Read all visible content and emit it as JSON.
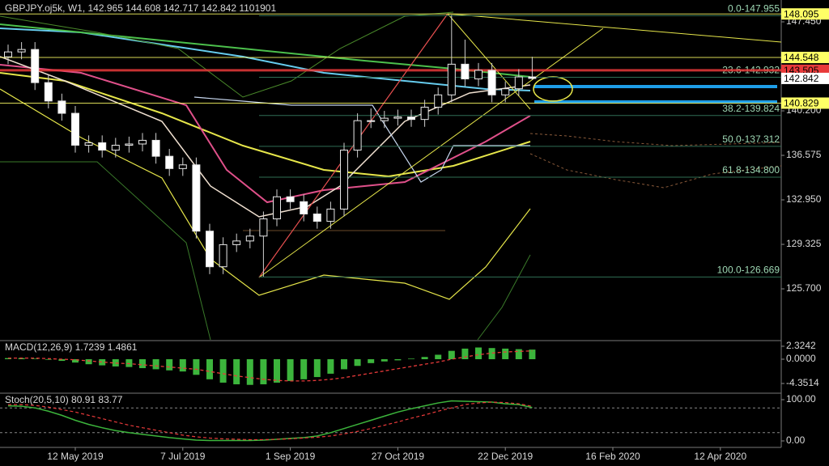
{
  "chart_data": [
    {
      "type": "candlestick",
      "title": "GBPJPY.oj5k, W1, 142.965 144.608 142.717 142.842 1101901",
      "open": [
        144.6,
        145.0,
        145.2,
        142.5,
        141.0,
        140.0,
        137.4,
        137.6,
        137.0,
        137.4,
        137.5,
        137.8,
        136.5,
        135.5,
        135.8,
        130.4,
        127.5,
        129.3,
        129.6,
        130.0,
        131.4,
        133.2,
        132.8,
        131.8,
        131.2,
        132.2,
        137.0,
        139.4,
        139.4,
        139.6,
        139.7,
        139.5,
        140.5,
        141.5,
        144.0,
        142.8,
        143.5,
        141.5,
        142.0,
        142.965
      ],
      "high": [
        145.6,
        145.8,
        145.8,
        143.1,
        141.6,
        140.6,
        138.2,
        138.2,
        138.0,
        138.1,
        138.4,
        138.4,
        137.1,
        136.4,
        136.4,
        131.0,
        129.9,
        130.2,
        130.6,
        132.0,
        133.8,
        133.8,
        133.4,
        132.4,
        132.8,
        137.6,
        140.0,
        140.4,
        140.2,
        140.3,
        140.3,
        141.1,
        142.1,
        148.0,
        146.0,
        144.1,
        144.1,
        142.6,
        143.6,
        144.608
      ],
      "low": [
        144.0,
        144.4,
        141.9,
        140.4,
        139.4,
        136.8,
        136.8,
        136.4,
        136.4,
        136.8,
        136.9,
        135.9,
        134.9,
        134.9,
        129.8,
        126.9,
        126.9,
        128.7,
        129.0,
        126.7,
        130.8,
        132.2,
        131.2,
        130.6,
        130.6,
        131.6,
        136.4,
        138.8,
        138.8,
        139.0,
        138.9,
        138.9,
        139.9,
        140.9,
        142.2,
        142.2,
        140.9,
        140.9,
        141.4,
        142.717
      ],
      "close": [
        145.0,
        145.2,
        142.5,
        141.0,
        140.0,
        137.4,
        137.6,
        137.0,
        137.4,
        137.5,
        137.8,
        136.5,
        135.5,
        135.8,
        130.4,
        127.5,
        129.3,
        129.6,
        130.0,
        131.4,
        133.2,
        132.8,
        131.8,
        131.2,
        132.2,
        137.0,
        139.4,
        139.4,
        139.6,
        139.7,
        139.5,
        140.5,
        141.5,
        144.0,
        142.8,
        143.5,
        141.5,
        142.0,
        142.965,
        142.842
      ],
      "up_color": "#000000",
      "down_color": "#ffffff",
      "ylim": [
        121.55,
        149.23
      ],
      "yticks": [
        {
          "value": 147.45,
          "label": "147.450"
        },
        {
          "value": 140.2,
          "label": "140.200"
        },
        136.575,
        {
          "value": 132.95,
          "label": "132.950"
        },
        129.325,
        {
          "value": 125.7,
          "label": "125.700"
        }
      ],
      "price_labels": [
        {
          "value": 148.095,
          "label": "148.095",
          "color": "#ffff66"
        },
        {
          "value": 144.548,
          "label": "144.548",
          "color": "#ffff66"
        },
        {
          "value": 143.505,
          "label": "143.505",
          "color": "#e83a3a"
        },
        {
          "value": 142.842,
          "label": "142.842",
          "color": "#ffffff"
        },
        {
          "value": 140.829,
          "label": "140.829",
          "color": "#ffff66"
        }
      ],
      "fib_levels": [
        {
          "value": 147.955,
          "label": "0.0-147.955"
        },
        {
          "value": 142.932,
          "label": "23.6-142.932"
        },
        {
          "value": 139.824,
          "label": "38.2-139.824"
        },
        {
          "value": 137.312,
          "label": "50.0-137.312"
        },
        {
          "value": 134.8,
          "label": "61.8-134.800"
        },
        {
          "value": 126.669,
          "label": "100.0-126.669"
        }
      ]
    },
    {
      "type": "bar",
      "title": "MACD(12,26,9) 1.7239 1.4861",
      "values": [
        0.2,
        0.2,
        0.1,
        -0.1,
        -0.3,
        -0.6,
        -0.9,
        -1.1,
        -1.3,
        -1.4,
        -1.6,
        -1.8,
        -2.0,
        -2.2,
        -2.8,
        -3.6,
        -4.2,
        -4.5,
        -4.6,
        -4.5,
        -4.2,
        -3.9,
        -3.6,
        -3.2,
        -2.6,
        -1.8,
        -1.2,
        -0.7,
        -0.4,
        -0.2,
        0.1,
        0.4,
        0.8,
        1.5,
        1.9,
        2.1,
        2.0,
        1.9,
        1.8,
        1.7239
      ],
      "signal": [
        0.2,
        0.2,
        0.2,
        0.1,
        0,
        -0.1,
        -0.3,
        -0.5,
        -0.7,
        -0.8,
        -1.0,
        -1.2,
        -1.4,
        -1.6,
        -1.8,
        -2.2,
        -2.6,
        -3.0,
        -3.3,
        -3.6,
        -3.8,
        -3.9,
        -3.9,
        -3.8,
        -3.6,
        -3.3,
        -2.9,
        -2.5,
        -2.1,
        -1.7,
        -1.3,
        -0.9,
        -0.5,
        0,
        0.4,
        0.8,
        1.1,
        1.3,
        1.4,
        1.4861
      ],
      "color": "#3cb53c",
      "signal_color": "#e83a3a",
      "ylim": [
        -5.8,
        3.19
      ],
      "yticks": [
        2.3242,
        {
          "value": 0,
          "label": "0.0000"
        },
        -4.3514
      ]
    },
    {
      "type": "line",
      "title": "Stoch(20,5,10) 80.91 83.77",
      "values": [
        85,
        84,
        80,
        72,
        62,
        50,
        40,
        32,
        25,
        20,
        16,
        12,
        8,
        5,
        2,
        1,
        1,
        1,
        1,
        2,
        4,
        6,
        8,
        12,
        20,
        30,
        40,
        50,
        60,
        70,
        78,
        85,
        92,
        97,
        96,
        95,
        94,
        90,
        88,
        80.91
      ],
      "signal": [
        88,
        88,
        86,
        82,
        76,
        70,
        62,
        54,
        46,
        38,
        32,
        26,
        20,
        14,
        10,
        7,
        5,
        4,
        3,
        3,
        4,
        5,
        7,
        9,
        12,
        17,
        23,
        30,
        38,
        46,
        55,
        63,
        72,
        80,
        88,
        92,
        94,
        93,
        90,
        83.77
      ],
      "color": "#3cb53c",
      "signal_color": "#e83a3a",
      "levels": [
        80,
        20
      ],
      "ylim": [
        -15.7,
        113.7
      ],
      "yticks": [
        {
          "value": 100,
          "label": "100.00"
        },
        {
          "value": 0,
          "label": "0.00"
        }
      ]
    }
  ],
  "date_labels": [
    "12 May 2019",
    "7 Jul 2019",
    "1 Sep 2019",
    "27 Oct 2019",
    "22 Dec 2019",
    "16 Feb 2020",
    "12 Apr 2020"
  ]
}
